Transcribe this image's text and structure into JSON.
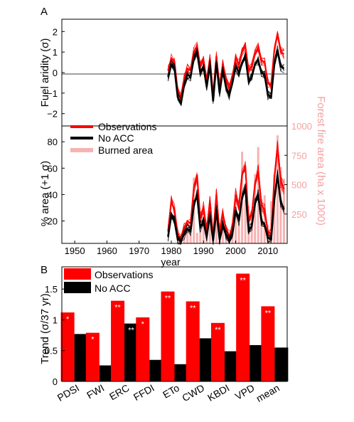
{
  "panel_a": {
    "label": "A",
    "top_ylabel": "Fuel aridity (σ)",
    "bottom_ylabel": "% area (+1 σ)",
    "right_ylabel": "Forest fire area (ha x 1000)",
    "xlabel": "year",
    "legend": [
      "Observations",
      "No ACC",
      "Burned area"
    ]
  },
  "panel_b": {
    "label": "B",
    "ylabel": "Trend (σ/37 yr)",
    "legend": [
      "Observations",
      "No ACC"
    ]
  },
  "colors": {
    "observations": "#ff0000",
    "no_acc": "#000000",
    "burned_area": "#f7b2b2",
    "right_axis_text": "#f4a0a0",
    "significance_star": "#ffffff"
  },
  "chart_data": [
    {
      "type": "line",
      "panel": "A-top",
      "x": [
        1979,
        1980,
        1981,
        1982,
        1983,
        1984,
        1985,
        1986,
        1987,
        1988,
        1989,
        1990,
        1991,
        1992,
        1993,
        1994,
        1995,
        1996,
        1997,
        1998,
        1999,
        2000,
        2001,
        2002,
        2003,
        2004,
        2005,
        2006,
        2007,
        2008,
        2009,
        2010,
        2011,
        2012,
        2013,
        2014,
        2015
      ],
      "xlim": [
        1946,
        2016
      ],
      "ylim": [
        -2.6,
        2.6
      ],
      "yticks": [
        -2,
        -1,
        0,
        1,
        2
      ],
      "series": [
        {
          "name": "Observations",
          "values": [
            0.1,
            0.7,
            0.5,
            -0.9,
            -1.2,
            -0.3,
            0.2,
            0.1,
            1.0,
            1.3,
            0.3,
            0.6,
            -0.4,
            0.7,
            -1.1,
            0.8,
            -0.7,
            0.4,
            -0.4,
            -0.8,
            -0.2,
            0.7,
            0.4,
            1.0,
            1.3,
            0.1,
            0.3,
            0.9,
            1.2,
            0.6,
            0.5,
            -0.5,
            -0.6,
            1.1,
            1.9,
            1.0,
            0.9
          ]
        },
        {
          "name": "No ACC",
          "values": [
            -0.2,
            0.4,
            0.2,
            -1.2,
            -1.5,
            -0.6,
            -0.1,
            -0.2,
            0.7,
            1.0,
            0.0,
            0.3,
            -0.7,
            0.4,
            -1.4,
            0.5,
            -1.0,
            0.1,
            -0.7,
            -1.1,
            -0.5,
            0.3,
            0.0,
            0.5,
            0.8,
            -0.4,
            -0.2,
            0.4,
            0.6,
            0.0,
            -0.1,
            -1.1,
            -1.2,
            0.4,
            1.1,
            0.3,
            0.2
          ]
        }
      ]
    },
    {
      "type": "line",
      "panel": "A-bottom",
      "x": [
        1979,
        1980,
        1981,
        1982,
        1983,
        1984,
        1985,
        1986,
        1987,
        1988,
        1989,
        1990,
        1991,
        1992,
        1993,
        1994,
        1995,
        1996,
        1997,
        1998,
        1999,
        2000,
        2001,
        2002,
        2003,
        2004,
        2005,
        2006,
        2007,
        2008,
        2009,
        2010,
        2011,
        2012,
        2013,
        2014,
        2015
      ],
      "xlim": [
        1946,
        2016
      ],
      "xticks": [
        1950,
        1960,
        1970,
        1980,
        1990,
        2000,
        2010
      ],
      "ylim": [
        3,
        92
      ],
      "yticks": [
        20,
        40,
        60,
        80
      ],
      "y2lim": [
        0,
        1000
      ],
      "y2ticks": [
        250,
        500,
        750,
        1000
      ],
      "series": [
        {
          "name": "Observations",
          "values": [
            12,
            35,
            28,
            10,
            7,
            14,
            20,
            18,
            45,
            55,
            22,
            30,
            12,
            35,
            8,
            40,
            10,
            25,
            14,
            8,
            16,
            40,
            30,
            55,
            62,
            20,
            25,
            48,
            58,
            32,
            28,
            12,
            10,
            52,
            76,
            50,
            44
          ]
        },
        {
          "name": "No ACC",
          "values": [
            8,
            25,
            20,
            6,
            5,
            10,
            14,
            12,
            32,
            40,
            15,
            20,
            8,
            25,
            5,
            28,
            6,
            17,
            9,
            5,
            10,
            28,
            20,
            38,
            45,
            13,
            16,
            33,
            40,
            20,
            17,
            7,
            6,
            36,
            55,
            34,
            29
          ]
        }
      ],
      "bars": {
        "name": "Burned area",
        "x": [
          1984,
          1985,
          1986,
          1987,
          1988,
          1989,
          1990,
          1991,
          1992,
          1993,
          1994,
          1995,
          1996,
          1997,
          1998,
          1999,
          2000,
          2001,
          2002,
          2003,
          2004,
          2005,
          2006,
          2007,
          2008,
          2009,
          2010,
          2011,
          2012,
          2013,
          2014,
          2015
        ],
        "values": [
          60,
          120,
          80,
          560,
          90,
          110,
          200,
          80,
          230,
          60,
          330,
          50,
          250,
          70,
          40,
          140,
          430,
          180,
          780,
          370,
          320,
          280,
          590,
          820,
          380,
          410,
          160,
          360,
          590,
          920,
          650,
          550
        ]
      }
    },
    {
      "type": "bar",
      "panel": "B",
      "categories": [
        "PDSI",
        "FWI",
        "ERC",
        "FFDI",
        "ETo",
        "CWD",
        "KBDI",
        "VPD",
        "mean"
      ],
      "ylim": [
        0,
        1.86
      ],
      "yticks": [
        0,
        0.5,
        1,
        1.5
      ],
      "series": [
        {
          "name": "Observations",
          "values": [
            1.12,
            0.79,
            1.31,
            1.04,
            1.46,
            1.3,
            0.95,
            1.75,
            1.22
          ],
          "stars": [
            "*",
            "*",
            "**",
            "*",
            "**",
            "**",
            "**",
            "**",
            "**"
          ]
        },
        {
          "name": "No ACC",
          "values": [
            0.77,
            0.26,
            0.94,
            0.35,
            0.28,
            0.7,
            0.49,
            0.59,
            0.55
          ],
          "stars": [
            "",
            "",
            "**",
            "",
            "",
            "",
            "",
            "",
            ""
          ]
        }
      ]
    }
  ]
}
